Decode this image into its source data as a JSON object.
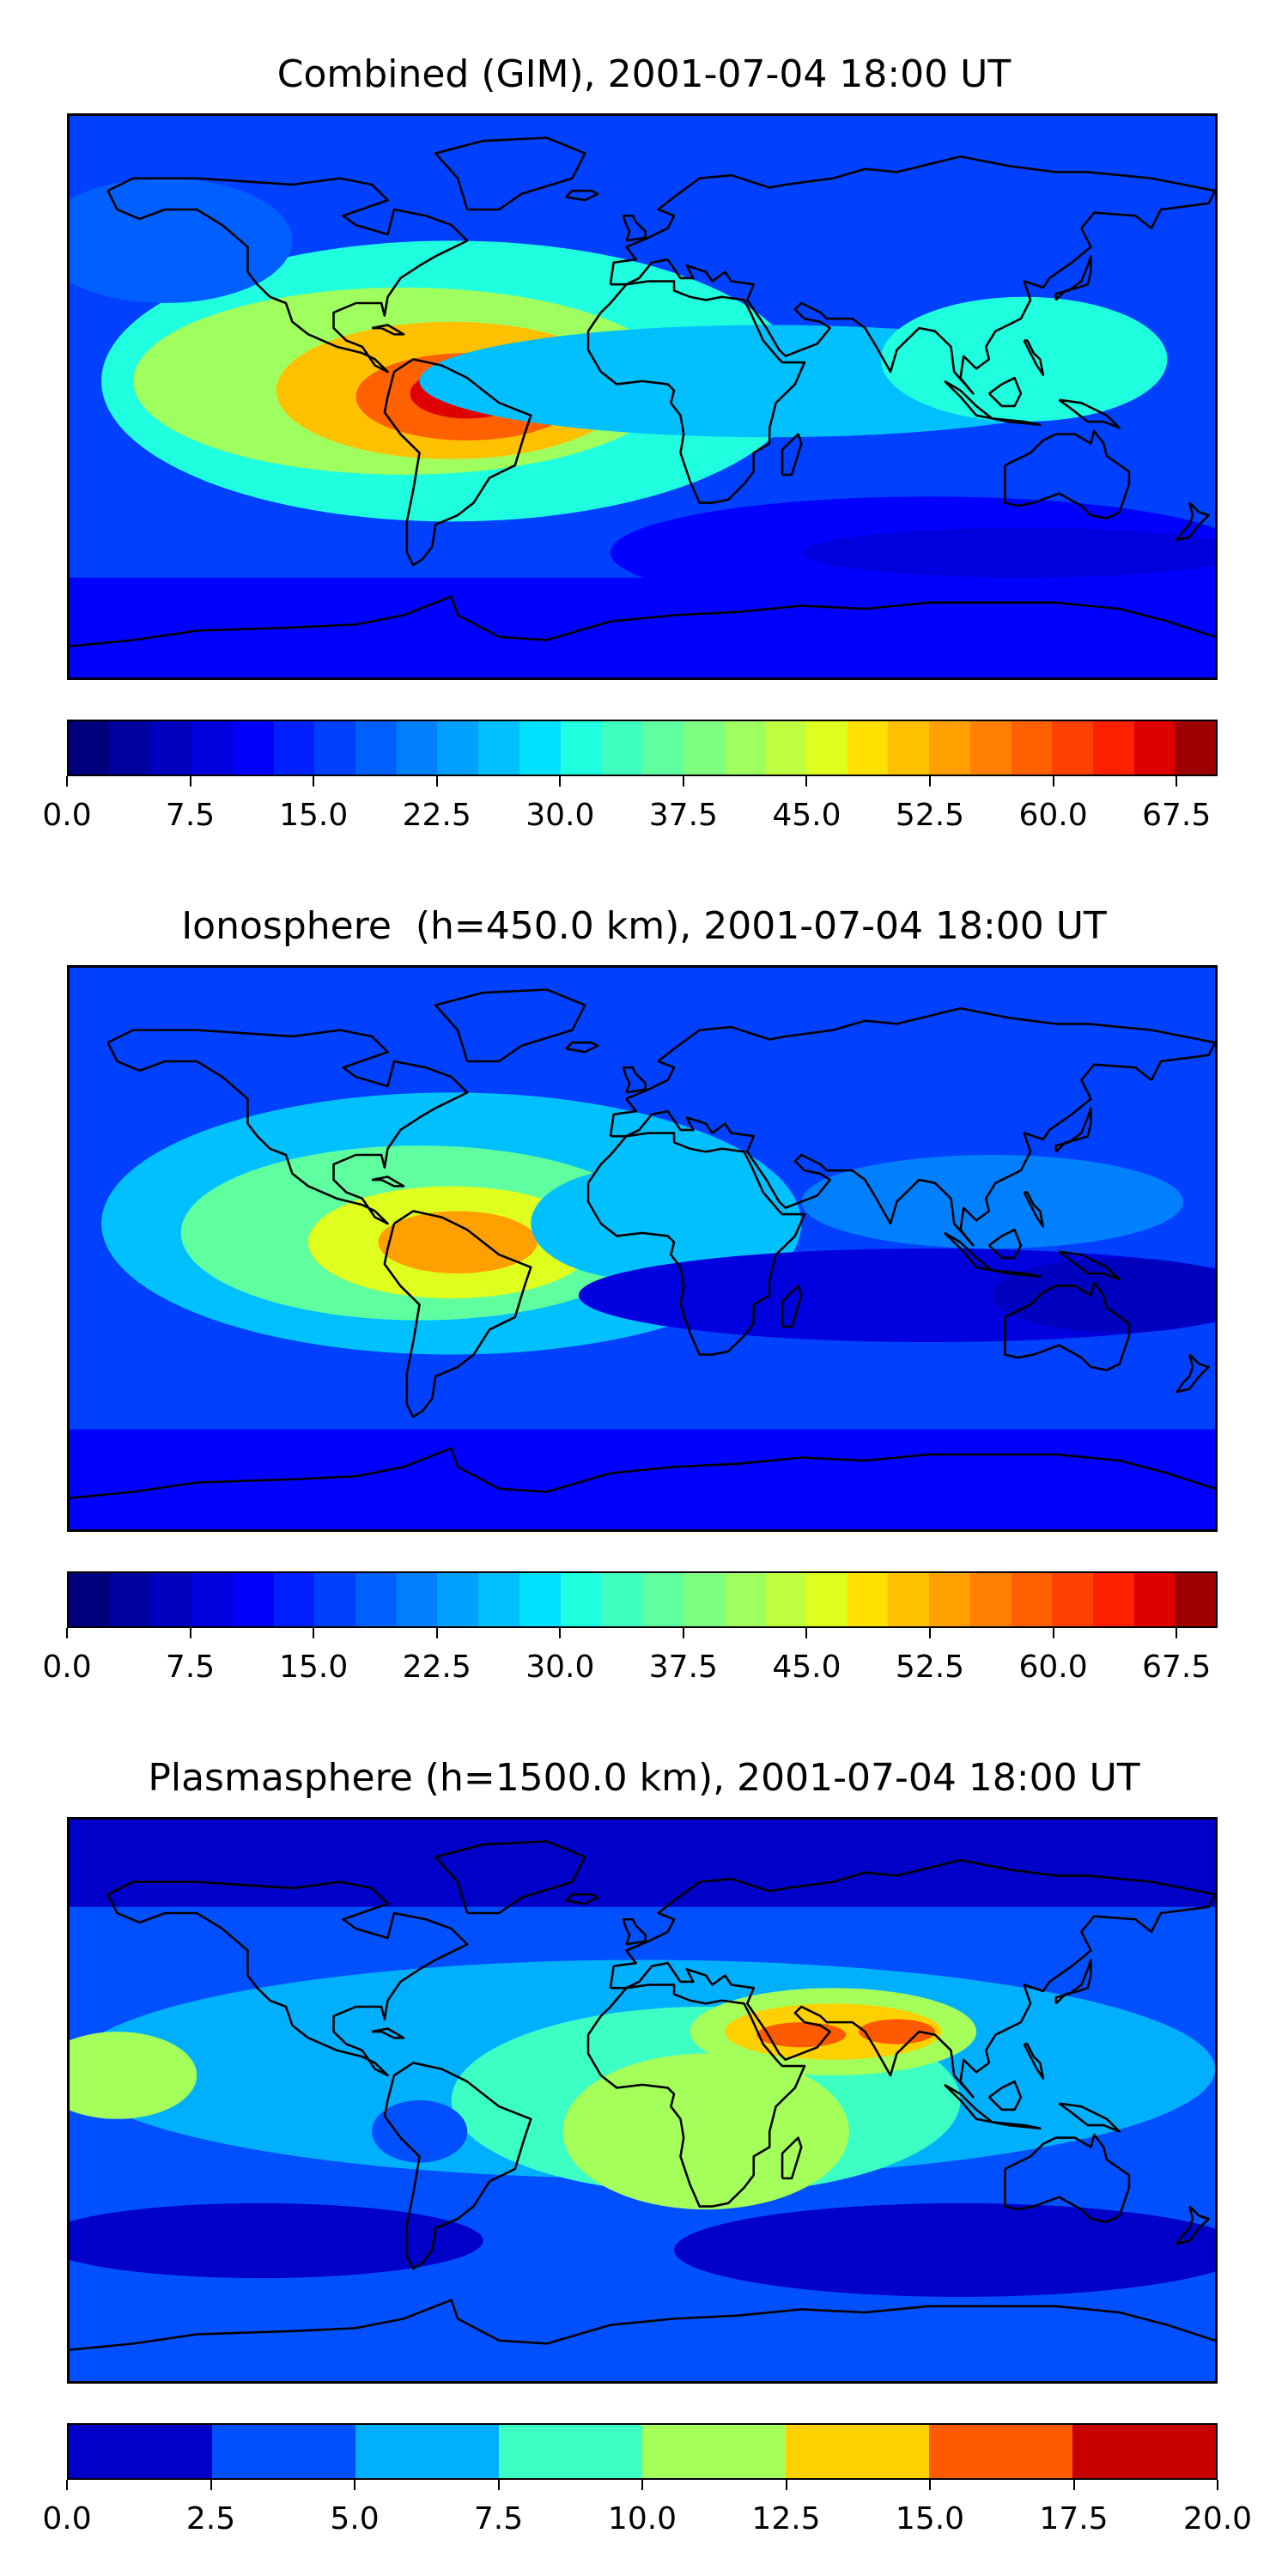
{
  "colors": {
    "jet28": [
      "#00007f",
      "#0000a9",
      "#0000d4",
      "#0000ff",
      "#0010ff",
      "#003cff",
      "#0068ff",
      "#0094ff",
      "#00c0ff",
      "#08ebee",
      "#2dffc9",
      "#52ffa4",
      "#77ff80",
      "#9cff5b",
      "#c9ff2d",
      "#eeff08",
      "#ffd300",
      "#ffa700",
      "#ff7b00",
      "#ff4f00",
      "#ff1d00",
      "#d40000",
      "#a90000",
      "#7f0000",
      "#7f0000",
      "#7f0000",
      "#7f0000",
      "#7f0000"
    ],
    "jet8": [
      "#0000c8",
      "#0050ff",
      "#00b0ff",
      "#3cffc4",
      "#a4ff5a",
      "#ffd000",
      "#ff5a00",
      "#c80000"
    ],
    "coastline": "#000000"
  },
  "chart_data": [
    {
      "type": "heatmap",
      "title": "Combined (GIM), 2001-07-04 18:00 UT",
      "colorbar": {
        "min": 0.0,
        "max": 70.0,
        "levels": 28,
        "ticks": [
          "0.0",
          "7.5",
          "15.0",
          "22.5",
          "30.0",
          "37.5",
          "45.0",
          "52.5",
          "60.0",
          "67.5"
        ],
        "tick_values": [
          0.0,
          7.5,
          15.0,
          22.5,
          30.0,
          37.5,
          45.0,
          52.5,
          60.0,
          67.5
        ]
      },
      "projection": "plate carree, global",
      "features": [
        {
          "region": "South America / tropical Atlantic",
          "lon": -55,
          "lat": 0,
          "value": 65
        },
        {
          "region": "Central America / Caribbean",
          "lon": -90,
          "lat": 15,
          "value": 45
        },
        {
          "region": "Africa (equatorial belt)",
          "lon": 20,
          "lat": 5,
          "value": 30
        },
        {
          "region": "Southeast Asia",
          "lon": 120,
          "lat": 10,
          "value": 32
        },
        {
          "region": "Southern Ocean / Australia",
          "lon": 120,
          "lat": -45,
          "value": 8
        },
        {
          "region": "Arctic",
          "lon": 0,
          "lat": 80,
          "value": 15
        }
      ]
    },
    {
      "type": "heatmap",
      "title": "Ionosphere  (h=450.0 km), 2001-07-04 18:00 UT",
      "colorbar": {
        "min": 0.0,
        "max": 70.0,
        "levels": 28,
        "ticks": [
          "0.0",
          "7.5",
          "15.0",
          "22.5",
          "30.0",
          "37.5",
          "45.0",
          "52.5",
          "60.0",
          "67.5"
        ],
        "tick_values": [
          0.0,
          7.5,
          15.0,
          22.5,
          30.0,
          37.5,
          45.0,
          52.5,
          60.0,
          67.5
        ]
      },
      "projection": "plate carree, global",
      "features": [
        {
          "region": "South America / tropical Atlantic",
          "lon": -55,
          "lat": 0,
          "value": 53
        },
        {
          "region": "Central America / Caribbean",
          "lon": -90,
          "lat": 15,
          "value": 40
        },
        {
          "region": "Africa (west)",
          "lon": 0,
          "lat": 10,
          "value": 25
        },
        {
          "region": "Southeast Asia",
          "lon": 120,
          "lat": 10,
          "value": 20
        },
        {
          "region": "Indian Ocean / Australia",
          "lon": 120,
          "lat": -25,
          "value": 5
        },
        {
          "region": "Arctic",
          "lon": 0,
          "lat": 80,
          "value": 15
        }
      ]
    },
    {
      "type": "heatmap",
      "title": "Plasmasphere (h=1500.0 km), 2001-07-04 18:00 UT",
      "colorbar": {
        "min": 0.0,
        "max": 20.0,
        "levels": 8,
        "ticks": [
          "0.0",
          "2.5",
          "5.0",
          "7.5",
          "10.0",
          "12.5",
          "15.0",
          "17.5",
          "20.0"
        ],
        "tick_values": [
          0.0,
          2.5,
          5.0,
          7.5,
          10.0,
          12.5,
          15.0,
          17.5,
          20.0
        ]
      },
      "projection": "plate carree, global",
      "features": [
        {
          "region": "Arabia / India",
          "lon": 60,
          "lat": 22,
          "value": 16
        },
        {
          "region": "Africa",
          "lon": 20,
          "lat": -10,
          "value": 11
        },
        {
          "region": "South Atlantic",
          "lon": -10,
          "lat": -20,
          "value": 11
        },
        {
          "region": "East Pacific",
          "lon": -160,
          "lat": 10,
          "value": 11
        },
        {
          "region": "off Brazil",
          "lon": -65,
          "lat": -10,
          "value": 3
        },
        {
          "region": "Southern Ocean",
          "lon": 0,
          "lat": -55,
          "value": 2
        },
        {
          "region": "Arctic",
          "lon": 0,
          "lat": 80,
          "value": 1
        }
      ]
    }
  ]
}
